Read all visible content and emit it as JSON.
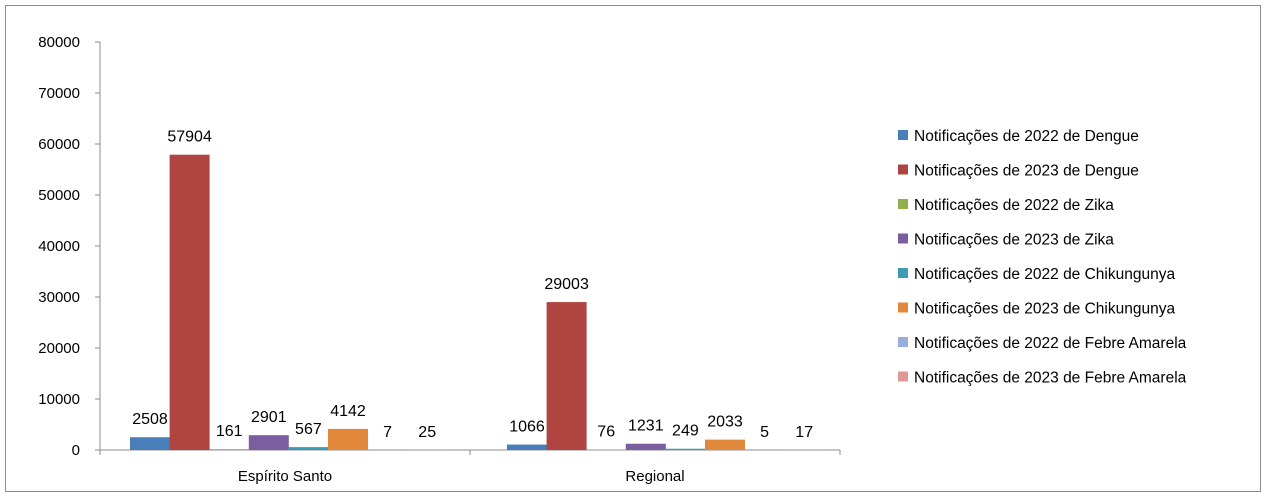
{
  "chart_data": {
    "type": "bar",
    "categories": [
      "Espírito Santo",
      "Regional"
    ],
    "series": [
      {
        "name": "Notificações de 2022 de Dengue",
        "values": [
          2508,
          1066
        ],
        "color": "#4a7ebb"
      },
      {
        "name": "Notificações de 2023 de Dengue",
        "values": [
          57904,
          29003
        ],
        "color": "#b04441"
      },
      {
        "name": "Notificações de 2022 de Zika",
        "values": [
          161,
          76
        ],
        "color": "#8fb04a"
      },
      {
        "name": "Notificações de 2023 de Zika",
        "values": [
          2901,
          1231
        ],
        "color": "#7a5e9f"
      },
      {
        "name": "Notificações de 2022 de Chikungunya",
        "values": [
          567,
          249
        ],
        "color": "#3c9bb5"
      },
      {
        "name": "Notificações de 2023 de Chikungunya",
        "values": [
          4142,
          2033
        ],
        "color": "#e2883a"
      },
      {
        "name": "Notificações de 2022 de Febre Amarela",
        "values": [
          7,
          5
        ],
        "color": "#9aaede"
      },
      {
        "name": "Notificações de 2023 de Febre Amarela",
        "values": [
          25,
          17
        ],
        "color": "#de9896"
      }
    ],
    "y_ticks": [
      "0",
      "10000",
      "20000",
      "30000",
      "40000",
      "50000",
      "60000",
      "70000",
      "80000"
    ],
    "ylim": [
      0,
      80000
    ],
    "legend_position": "right",
    "grid": false
  }
}
